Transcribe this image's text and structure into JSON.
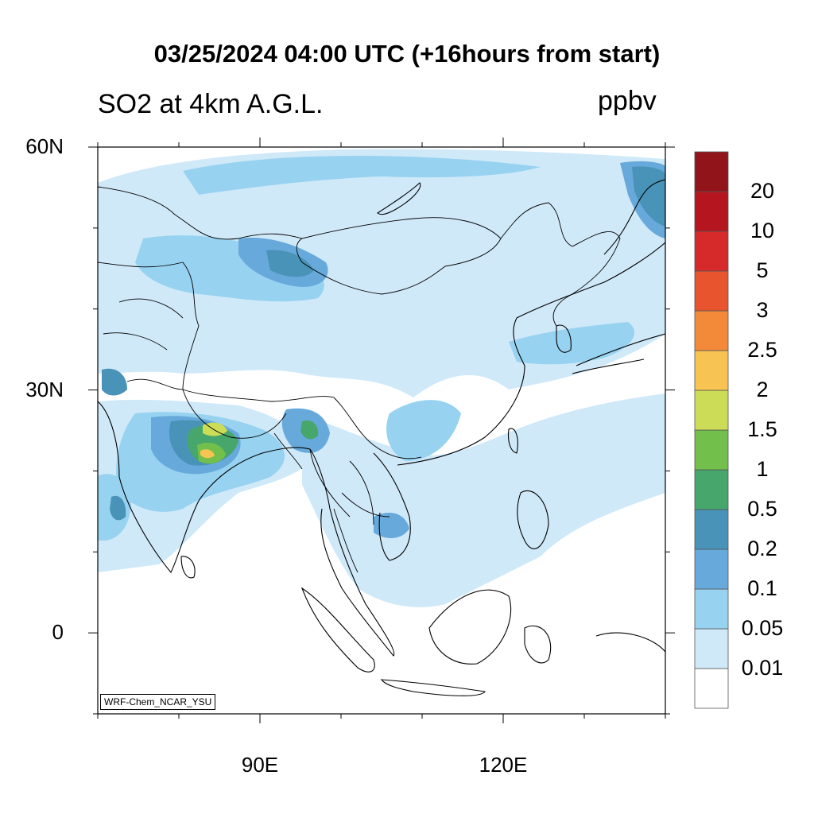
{
  "title": "03/25/2024 04:00 UTC (+16hours from start)",
  "variable_label": "SO2 at 4km A.G.L.",
  "units": "ppbv",
  "credit": "WRF-Chem_NCAR_YSU",
  "lat_ticks": [
    {
      "label": "60N",
      "lat": 60
    },
    {
      "label": "30N",
      "lat": 30
    },
    {
      "label": "0",
      "lat": 0
    }
  ],
  "lon_ticks": [
    {
      "label": "90E",
      "lon": 90
    },
    {
      "label": "120E",
      "lon": 120
    }
  ],
  "colorbar": {
    "levels": [
      "0.01",
      "0.05",
      "0.1",
      "0.2",
      "0.5",
      "1",
      "1.5",
      "2",
      "2.5",
      "3",
      "5",
      "10",
      "20"
    ],
    "colors": [
      "#ffffff",
      "#cfe9f9",
      "#97d2f0",
      "#67a9db",
      "#4a93b8",
      "#47a66c",
      "#72bf4b",
      "#cddc57",
      "#f7c352",
      "#f28a3a",
      "#e7542d",
      "#d52a29",
      "#b5151f",
      "#901419"
    ]
  },
  "map_extent": {
    "lon_min": 70,
    "lon_max": 140,
    "lat_min": -10,
    "lat_max": 60
  }
}
